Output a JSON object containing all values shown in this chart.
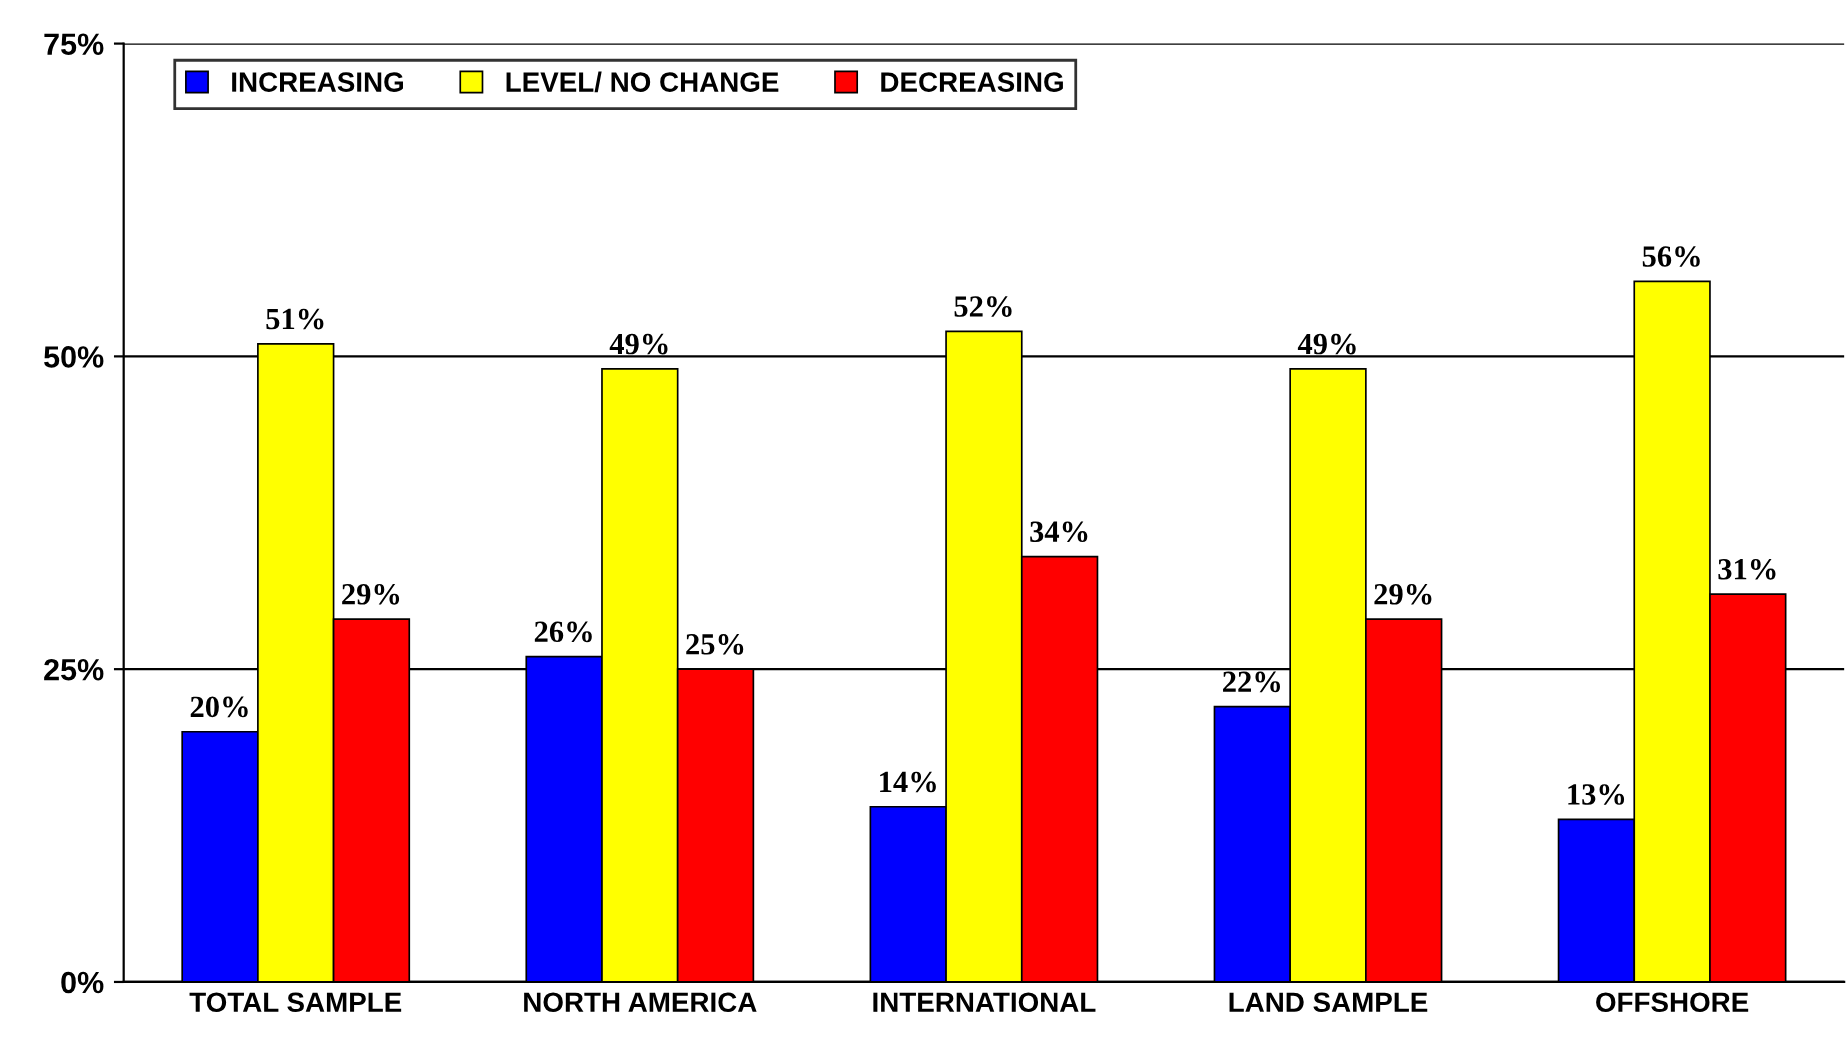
{
  "chart_data": {
    "type": "bar",
    "categories": [
      "TOTAL SAMPLE",
      "NORTH AMERICA",
      "INTERNATIONAL",
      "LAND SAMPLE",
      "OFFSHORE"
    ],
    "series": [
      {
        "name": "INCREASING",
        "color": "#0000ff",
        "values": [
          20,
          26,
          14,
          22,
          13
        ],
        "value_labels": [
          "20%",
          "26%",
          "14%",
          "22%",
          "13%"
        ]
      },
      {
        "name": "LEVEL/ NO CHANGE",
        "color": "#ffff00",
        "values": [
          51,
          49,
          52,
          49,
          56
        ],
        "value_labels": [
          "51%",
          "49%",
          "52%",
          "49%",
          "56%"
        ]
      },
      {
        "name": "DECREASING",
        "color": "#ff0000",
        "values": [
          29,
          25,
          34,
          29,
          31
        ],
        "value_labels": [
          "29%",
          "25%",
          "34%",
          "29%",
          "31%"
        ]
      }
    ],
    "ylim": [
      0,
      75
    ],
    "yticks": [
      {
        "value": 0,
        "label": "0%"
      },
      {
        "value": 25,
        "label": "25%"
      },
      {
        "value": 50,
        "label": "50%"
      },
      {
        "value": 75,
        "label": "75%"
      }
    ],
    "grid": "y",
    "legend": "top left"
  }
}
